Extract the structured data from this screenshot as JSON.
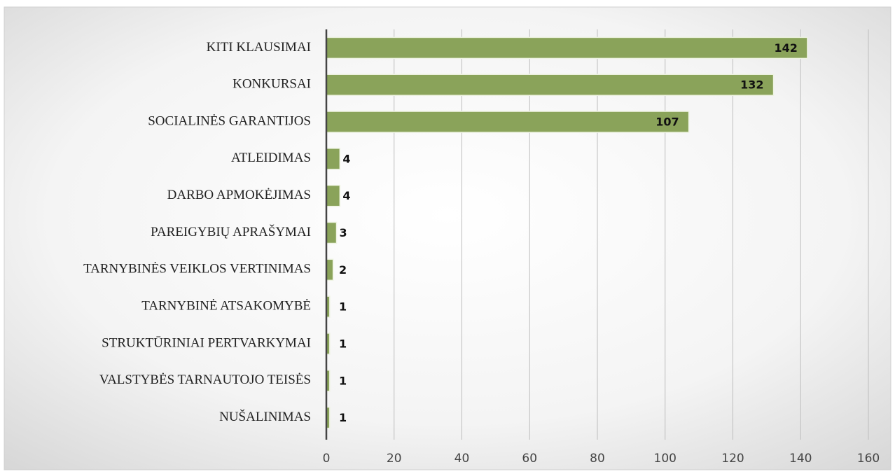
{
  "chart_data": {
    "type": "bar",
    "orientation": "horizontal",
    "categories": [
      "KITI KLAUSIMAI",
      "KONKURSAI",
      "SOCIALINĖS GARANTIJOS",
      "ATLEIDIMAS",
      "DARBO APMOKĖJIMAS",
      "PAREIGYBIŲ APRAŠYMAI",
      "TARNYBINĖS VEIKLOS VERTINIMAS",
      "TARNYBINĖ ATSAKOMYBĖ",
      "STRUKTŪRINIAI PERTVARKYMAI",
      "VALSTYBĖS TARNAUTOJO TEISĖS",
      "NUŠALINIMAS"
    ],
    "values": [
      142,
      132,
      107,
      4,
      4,
      3,
      2,
      1,
      1,
      1,
      1
    ],
    "color": "#8aa35a",
    "xlim": [
      0,
      160
    ],
    "xticks": [
      0,
      20,
      40,
      60,
      80,
      100,
      120,
      140,
      160
    ],
    "grid": true
  }
}
